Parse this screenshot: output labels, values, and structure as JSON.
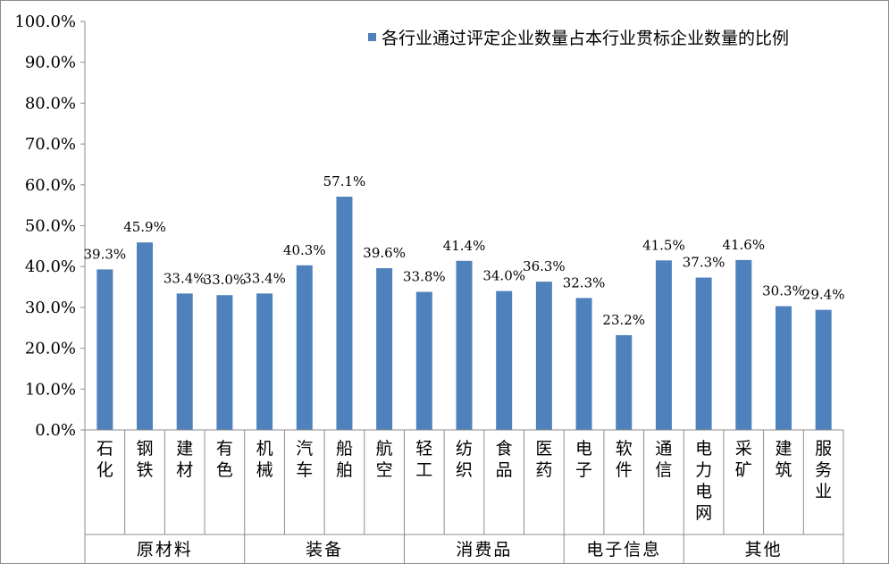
{
  "chart_data": {
    "type": "bar",
    "title": "",
    "xlabel": "",
    "ylabel": "",
    "ylim": [
      0,
      100
    ],
    "yticks": [
      "0.0%",
      "10.0%",
      "20.0%",
      "30.0%",
      "40.0%",
      "50.0%",
      "60.0%",
      "70.0%",
      "80.0%",
      "90.0%",
      "100.0%"
    ],
    "legend_position": "top-right",
    "bar_color": "#4f81bd",
    "series": [
      {
        "name": "各行业通过评定企业数量占本行业贯标企业数量的比例",
        "values": [
          39.3,
          45.9,
          33.4,
          33.0,
          33.4,
          40.3,
          57.1,
          39.6,
          33.8,
          41.4,
          34.0,
          36.3,
          32.3,
          23.2,
          41.5,
          37.3,
          41.6,
          30.3,
          29.4
        ]
      }
    ],
    "categories": [
      "石化",
      "钢铁",
      "建材",
      "有色",
      "机械",
      "汽车",
      "船舶",
      "航空",
      "轻工",
      "纺织",
      "食品",
      "医药",
      "电子",
      "软件",
      "通信",
      "电力电网",
      "采矿",
      "建筑",
      "服务业"
    ],
    "data_labels": [
      "39.3%",
      "45.9%",
      "33.4%",
      "33.0%",
      "33.4%",
      "40.3%",
      "57.1%",
      "39.6%",
      "33.8%",
      "41.4%",
      "34.0%",
      "36.3%",
      "32.3%",
      "23.2%",
      "41.5%",
      "37.3%",
      "41.6%",
      "30.3%",
      "29.4%"
    ],
    "groups": [
      {
        "label": "原材料",
        "count": 4
      },
      {
        "label": "装备",
        "count": 4
      },
      {
        "label": "消费品",
        "count": 4
      },
      {
        "label": "电子信息",
        "count": 3
      },
      {
        "label": "其他",
        "count": 4
      }
    ]
  }
}
